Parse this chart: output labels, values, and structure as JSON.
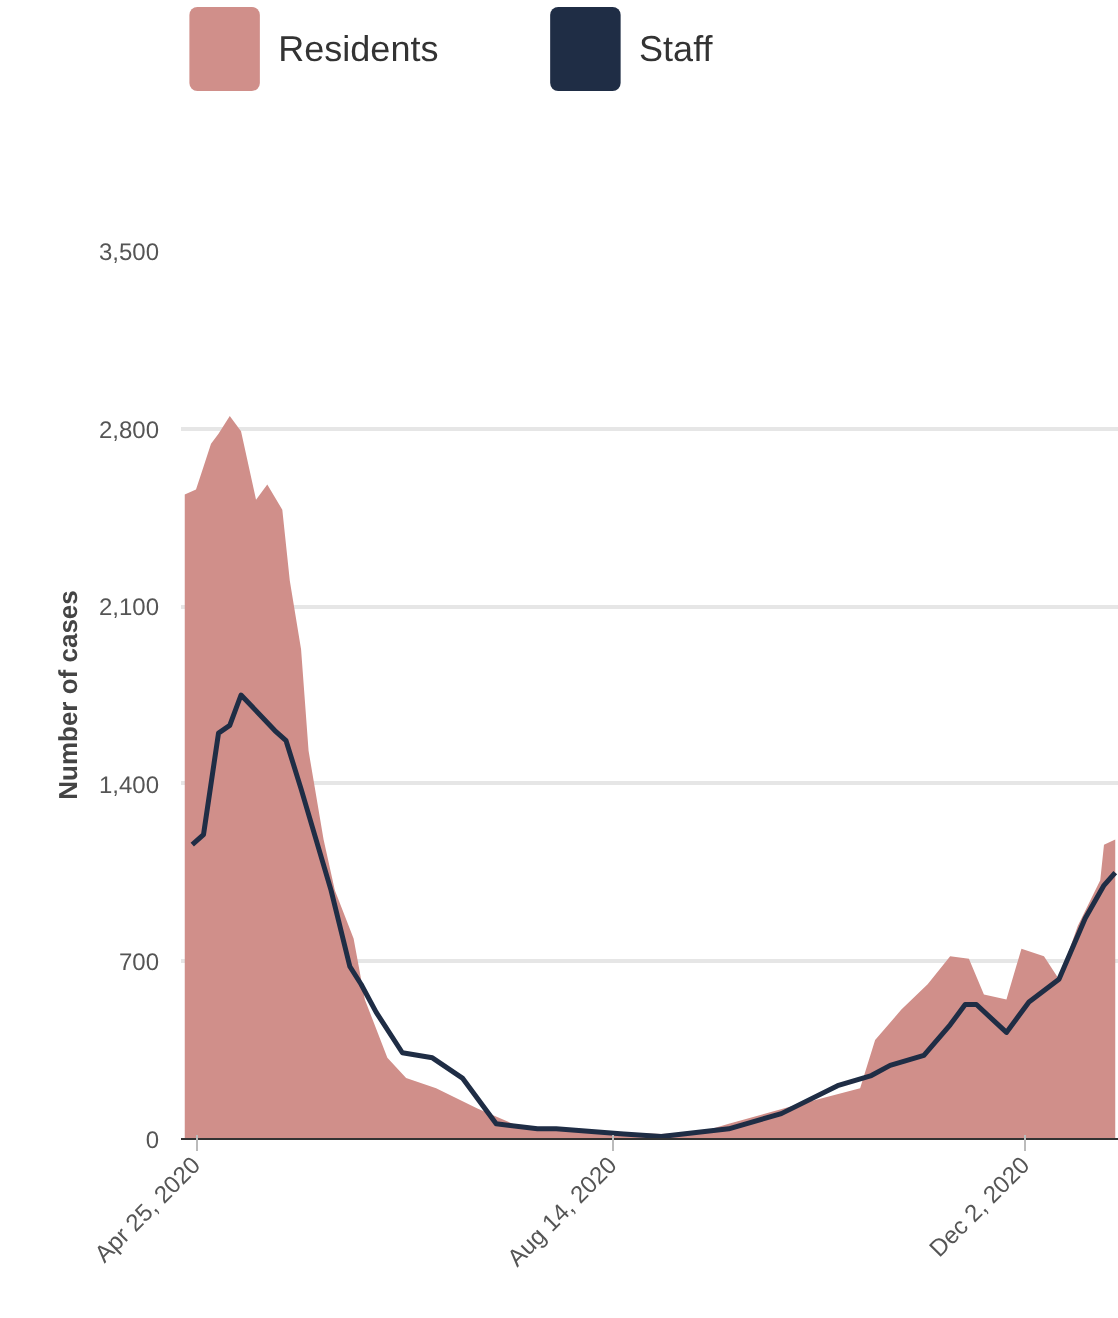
{
  "chart_data": {
    "type": "area",
    "ylabel": "Number of cases",
    "xlim": [
      "2020-04-21",
      "2020-12-27"
    ],
    "xticks": [
      {
        "value": "2020-04-25",
        "label": "Apr 25, 2020"
      },
      {
        "value": "2020-08-14",
        "label": "Aug 14, 2020"
      },
      {
        "value": "2020-12-02",
        "label": "Dec 2, 2020"
      }
    ],
    "ylim": [
      0,
      3500
    ],
    "yticks": [
      {
        "value": 0,
        "label": "0"
      },
      {
        "value": 700,
        "label": "700"
      },
      {
        "value": 1400,
        "label": "1,400"
      },
      {
        "value": 2100,
        "label": "2,100"
      },
      {
        "value": 2800,
        "label": "2,800"
      },
      {
        "value": 3500,
        "label": "3,500"
      }
    ],
    "grid": "y",
    "legend": "top",
    "series": [
      {
        "name": "Residents",
        "color": "#d08f8a",
        "x": [
          "2020-04-22",
          "2020-04-25",
          "2020-04-27",
          "2020-04-29",
          "2020-05-01",
          "2020-05-04",
          "2020-05-07",
          "2020-05-11",
          "2020-05-14",
          "2020-05-18",
          "2020-05-20",
          "2020-05-23",
          "2020-05-25",
          "2020-05-29",
          "2020-06-01",
          "2020-06-06",
          "2020-06-09",
          "2020-06-15",
          "2020-06-20",
          "2020-06-28",
          "2020-07-09",
          "2020-07-20",
          "2020-08-11",
          "2020-08-27",
          "2020-09-07",
          "2020-09-14",
          "2020-10-01",
          "2020-10-19",
          "2020-10-23",
          "2020-10-30",
          "2020-11-06",
          "2020-11-12",
          "2020-11-17",
          "2020-11-21",
          "2020-11-27",
          "2020-12-01",
          "2020-12-07",
          "2020-12-11",
          "2020-12-16",
          "2020-12-22",
          "2020-12-23",
          "2020-12-26"
        ],
        "values": [
          2540,
          2560,
          2650,
          2740,
          2780,
          2850,
          2790,
          2520,
          2580,
          2480,
          2200,
          1930,
          1530,
          1180,
          980,
          790,
          550,
          320,
          240,
          200,
          120,
          50,
          30,
          20,
          30,
          60,
          130,
          200,
          390,
          510,
          610,
          720,
          710,
          570,
          550,
          750,
          720,
          630,
          840,
          1020,
          1160,
          1180
        ]
      },
      {
        "name": "Staff",
        "type": "line",
        "color": "#1f2d45",
        "x": [
          "2020-04-24",
          "2020-04-27",
          "2020-05-01",
          "2020-05-04",
          "2020-05-07",
          "2020-05-16",
          "2020-05-19",
          "2020-05-23",
          "2020-05-31",
          "2020-06-05",
          "2020-06-08",
          "2020-06-12",
          "2020-06-19",
          "2020-06-27",
          "2020-07-05",
          "2020-07-14",
          "2020-07-25",
          "2020-07-30",
          "2020-08-17",
          "2020-08-27",
          "2020-09-14",
          "2020-09-28",
          "2020-10-13",
          "2020-10-22",
          "2020-10-27",
          "2020-11-05",
          "2020-11-12",
          "2020-11-16",
          "2020-11-19",
          "2020-11-27",
          "2020-12-03",
          "2020-12-11",
          "2020-12-18",
          "2020-12-23",
          "2020-12-26"
        ],
        "values": [
          1160,
          1200,
          1600,
          1630,
          1750,
          1610,
          1570,
          1380,
          980,
          680,
          610,
          500,
          340,
          320,
          240,
          60,
          40,
          40,
          20,
          10,
          40,
          100,
          210,
          250,
          290,
          330,
          450,
          530,
          530,
          420,
          540,
          630,
          870,
          1000,
          1050
        ]
      }
    ]
  }
}
